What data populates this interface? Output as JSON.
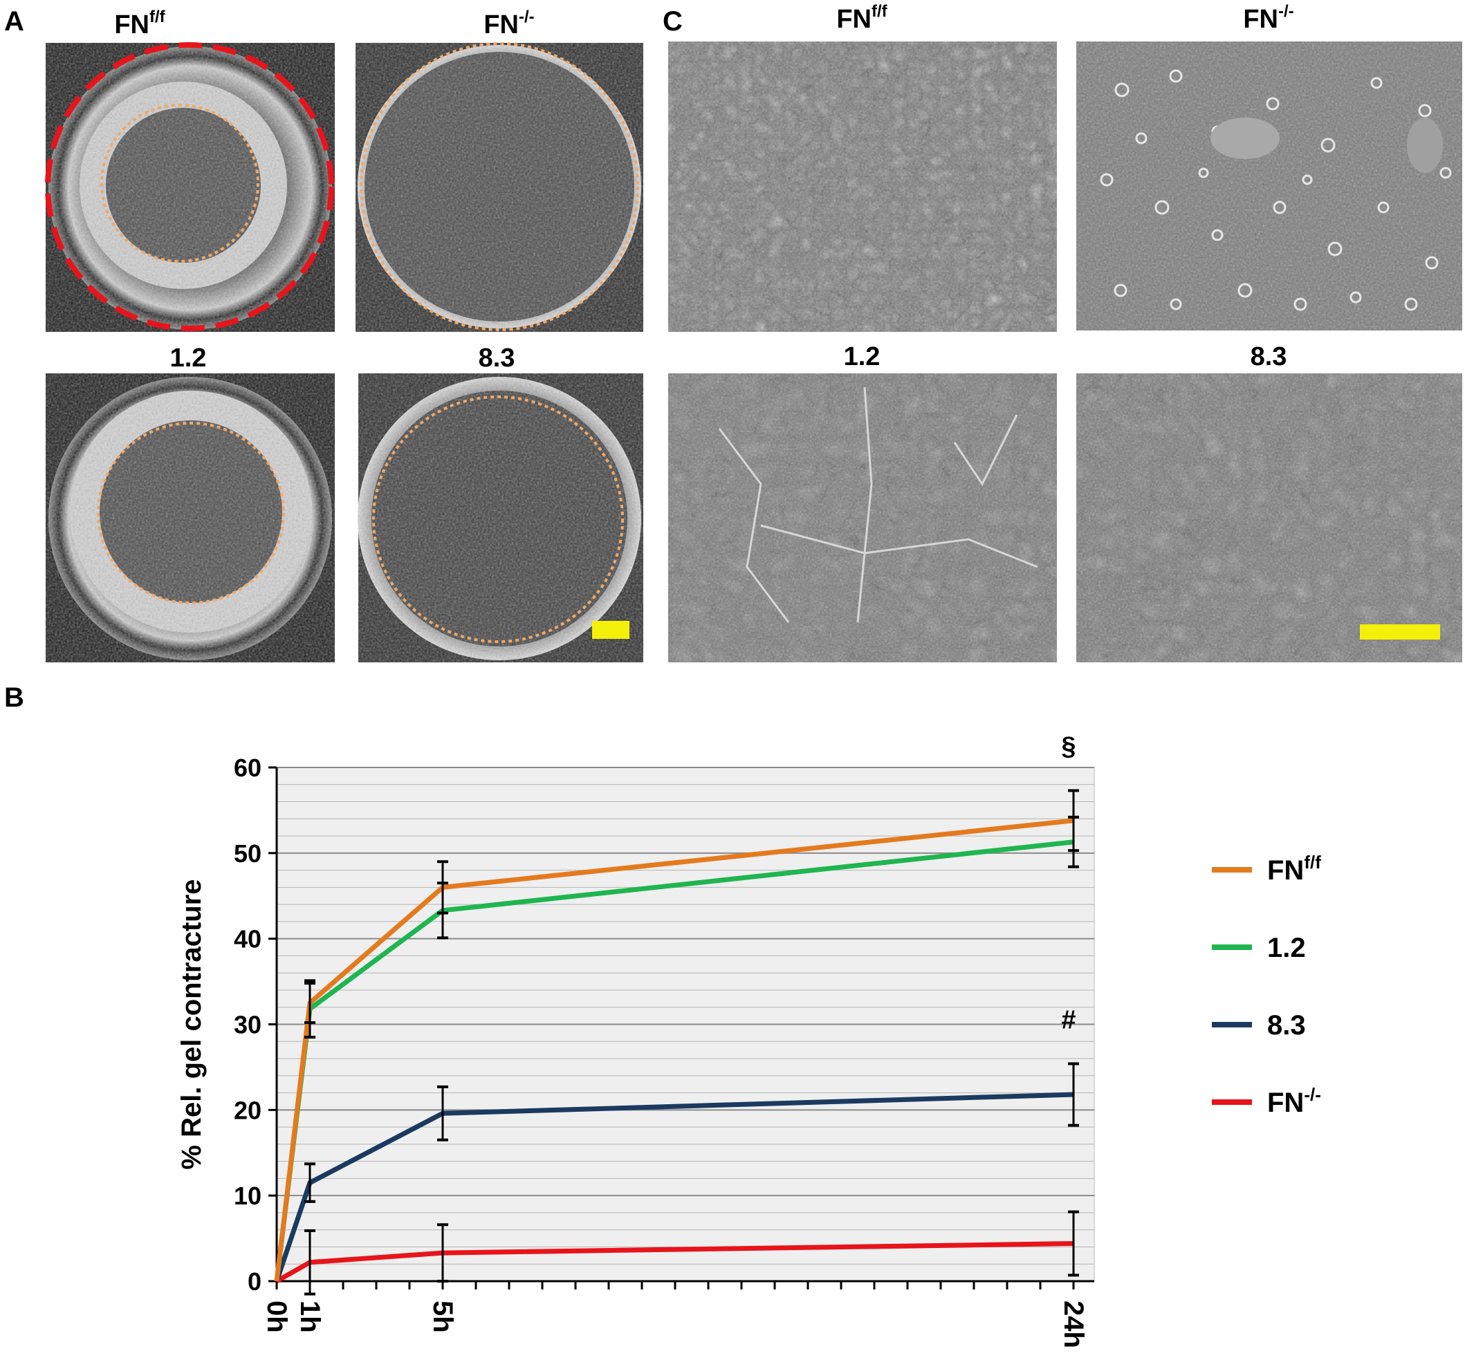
{
  "panel_a": {
    "letter": "A",
    "wells": [
      {
        "label_base": "FN",
        "label_sup": "f/f"
      },
      {
        "label_base": "FN",
        "label_sup": "-/-"
      },
      {
        "label_base": "1.2",
        "label_sup": ""
      },
      {
        "label_base": "8.3",
        "label_sup": ""
      }
    ],
    "outline_colors": {
      "outer": "#e8141b",
      "inner": "#f0a868"
    },
    "scalebar_color": "#f5f00a"
  },
  "panel_c": {
    "letter": "C",
    "micrographs": [
      {
        "label_base": "FN",
        "label_sup": "f/f"
      },
      {
        "label_base": "FN",
        "label_sup": "-/-"
      },
      {
        "label_base": "1.2",
        "label_sup": ""
      },
      {
        "label_base": "8.3",
        "label_sup": ""
      }
    ],
    "scalebar_color": "#f5f00a"
  },
  "panel_b": {
    "letter": "B",
    "chart_data": {
      "type": "line",
      "ylabel": "% Rel. gel contracture",
      "xlabel": "",
      "x_ticks": [
        "0h",
        "1h",
        "5h",
        "24h"
      ],
      "x": [
        0,
        1,
        5,
        24
      ],
      "xlim": [
        0,
        24
      ],
      "ylim": [
        0,
        60
      ],
      "y_ticks": [
        0,
        10,
        20,
        30,
        40,
        50,
        60
      ],
      "grid": true,
      "legend_position": "right",
      "series": [
        {
          "name": "FN",
          "name_sup": "f/f",
          "color": "#e47a1e",
          "values": [
            0,
            32.5,
            46,
            53.8
          ],
          "error": [
            0,
            2.3,
            3,
            3.5
          ]
        },
        {
          "name": "1.2",
          "name_sup": "",
          "color": "#1fb550",
          "values": [
            0,
            31.8,
            43.3,
            51.3
          ],
          "error": [
            0,
            3.3,
            3.2,
            2.9
          ]
        },
        {
          "name": "8.3",
          "name_sup": "",
          "color": "#1b3a5f",
          "values": [
            0,
            11.5,
            19.6,
            21.8
          ],
          "error": [
            0,
            2.2,
            3.1,
            3.6
          ]
        },
        {
          "name": "FN",
          "name_sup": "-/-",
          "color": "#e8141b",
          "values": [
            0,
            2.2,
            3.3,
            4.4
          ],
          "error": [
            0,
            3.7,
            3.3,
            3.7
          ]
        }
      ],
      "annotations": [
        {
          "text": "§",
          "x": 24,
          "y": 61.5
        },
        {
          "text": "#",
          "x": 24,
          "y": 29.5
        }
      ]
    }
  }
}
